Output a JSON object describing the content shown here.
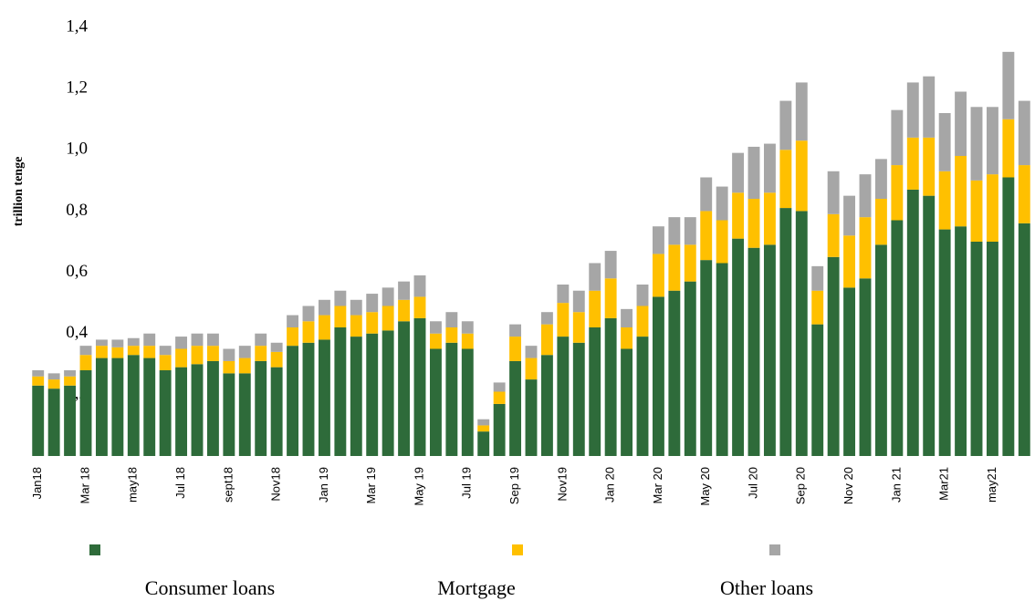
{
  "chart_data": {
    "type": "stacked_bar",
    "y_label": "trillion tenge",
    "categories": [
      "Jan18",
      null,
      null,
      "Mar 18",
      null,
      null,
      "may18",
      null,
      null,
      "Jul 18",
      null,
      null,
      "sept18",
      null,
      null,
      "Nov18",
      null,
      null,
      "Jan 19",
      null,
      null,
      "Mar 19",
      null,
      null,
      "May 19",
      null,
      null,
      "Jul 19",
      null,
      null,
      "Sep 19",
      null,
      null,
      "Nov19",
      null,
      null,
      "Jan 20",
      null,
      null,
      "Mar 20",
      null,
      null,
      "May 20",
      null,
      null,
      "Jul 20",
      null,
      null,
      "Sep 20",
      null,
      null,
      "Nov 20",
      null,
      null,
      "Jan 21",
      null,
      null,
      "Mar21",
      null,
      null,
      "may21",
      null,
      null
    ],
    "series": [
      {
        "name": "Consumer loans",
        "color": "#2e6b3a",
        "values": [
          0.23,
          0.22,
          0.23,
          0.28,
          0.32,
          0.32,
          0.33,
          0.32,
          0.28,
          0.29,
          0.3,
          0.31,
          0.27,
          0.27,
          0.31,
          0.29,
          0.36,
          0.37,
          0.38,
          0.42,
          0.39,
          0.4,
          0.41,
          0.44,
          0.45,
          0.35,
          0.37,
          0.35,
          0.08,
          0.17,
          0.31,
          0.25,
          0.33,
          0.39,
          0.37,
          0.42,
          0.45,
          0.35,
          0.39,
          0.52,
          0.54,
          0.57,
          0.64,
          0.63,
          0.71,
          0.68,
          0.69,
          0.81,
          0.8,
          0.43,
          0.65,
          0.55,
          0.58,
          0.69,
          0.77,
          0.87,
          0.85,
          0.74,
          0.75,
          0.7,
          0.7,
          0.91,
          0.76
        ]
      },
      {
        "name": "Mortgage",
        "color": "#ffc000",
        "values": [
          0.03,
          0.03,
          0.03,
          0.05,
          0.04,
          0.035,
          0.03,
          0.04,
          0.05,
          0.06,
          0.06,
          0.05,
          0.04,
          0.05,
          0.05,
          0.05,
          0.06,
          0.07,
          0.08,
          0.07,
          0.07,
          0.07,
          0.08,
          0.07,
          0.07,
          0.05,
          0.05,
          0.05,
          0.02,
          0.04,
          0.08,
          0.07,
          0.1,
          0.11,
          0.1,
          0.12,
          0.13,
          0.07,
          0.1,
          0.14,
          0.15,
          0.12,
          0.16,
          0.14,
          0.15,
          0.16,
          0.17,
          0.19,
          0.23,
          0.11,
          0.14,
          0.17,
          0.2,
          0.15,
          0.18,
          0.17,
          0.19,
          0.19,
          0.23,
          0.2,
          0.22,
          0.19,
          0.19
        ]
      },
      {
        "name": "Other loans",
        "color": "#a6a6a6",
        "values": [
          0.02,
          0.02,
          0.02,
          0.03,
          0.02,
          0.025,
          0.025,
          0.04,
          0.03,
          0.04,
          0.04,
          0.04,
          0.04,
          0.04,
          0.04,
          0.03,
          0.04,
          0.05,
          0.05,
          0.05,
          0.05,
          0.06,
          0.06,
          0.06,
          0.07,
          0.04,
          0.05,
          0.04,
          0.02,
          0.03,
          0.04,
          0.04,
          0.04,
          0.06,
          0.07,
          0.09,
          0.09,
          0.06,
          0.07,
          0.09,
          0.09,
          0.09,
          0.11,
          0.11,
          0.13,
          0.17,
          0.16,
          0.16,
          0.19,
          0.08,
          0.14,
          0.13,
          0.14,
          0.13,
          0.18,
          0.18,
          0.2,
          0.19,
          0.21,
          0.24,
          0.22,
          0.22,
          0.21
        ]
      }
    ],
    "ylim": [
      0,
      1.4
    ],
    "yticks": [
      {
        "value": 0.2,
        "label": "0,2"
      },
      {
        "value": 0.4,
        "label": "0,4"
      },
      {
        "value": 0.6,
        "label": "0,6"
      },
      {
        "value": 0.8,
        "label": "0,8"
      },
      {
        "value": 1.0,
        "label": "1,0"
      },
      {
        "value": 1.2,
        "label": "1,2"
      },
      {
        "value": 1.4,
        "label": "1,4"
      }
    ],
    "grid": false
  }
}
